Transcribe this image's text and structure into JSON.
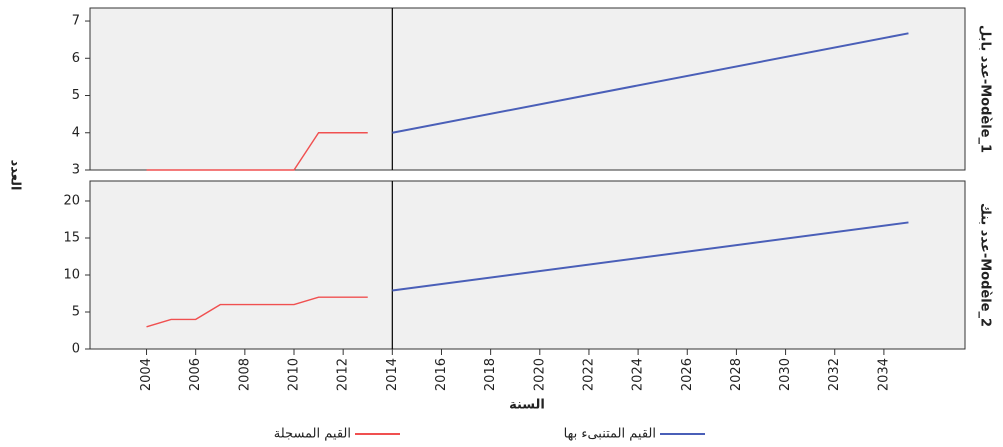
{
  "chart_data": {
    "type": "line",
    "y_label": "العدد",
    "x_label": "السنة",
    "xlim": [
      2001.7,
      2037.3
    ],
    "xticks": [
      2004,
      2006,
      2008,
      2010,
      2012,
      2014,
      2016,
      2018,
      2020,
      2022,
      2024,
      2026,
      2028,
      2030,
      2032,
      2034
    ],
    "reference_x": 2014,
    "legend": [
      {
        "name": "القيم المسجلة",
        "color": "#f05050"
      },
      {
        "name": "القيم المتنبىء بها",
        "color": "#4a5fb8"
      }
    ],
    "panels": [
      {
        "label": "عدد بابل-Modèle_1",
        "ylim": [
          3,
          7.35
        ],
        "yticks": [
          3,
          4,
          5,
          6,
          7
        ],
        "series": [
          {
            "x": [
              2004,
              2005,
              2006,
              2007,
              2008,
              2009,
              2010,
              2011,
              2012,
              2013
            ],
            "values": [
              3,
              3,
              3,
              3,
              3,
              3,
              3,
              4,
              4,
              4
            ]
          },
          {
            "x": [
              2014,
              2035
            ],
            "values": [
              4.0,
              6.67
            ]
          }
        ]
      },
      {
        "label": "عدد بنك-Modèle_2",
        "ylim": [
          0,
          22.7
        ],
        "yticks": [
          0,
          5,
          10,
          15,
          20
        ],
        "series": [
          {
            "x": [
              2004,
              2005,
              2006,
              2007,
              2008,
              2009,
              2010,
              2011,
              2012,
              2013
            ],
            "values": [
              3,
              4,
              4,
              6,
              6,
              6,
              6,
              7,
              7,
              7
            ]
          },
          {
            "x": [
              2014,
              2035
            ],
            "values": [
              7.9,
              17.1
            ]
          }
        ]
      }
    ]
  }
}
